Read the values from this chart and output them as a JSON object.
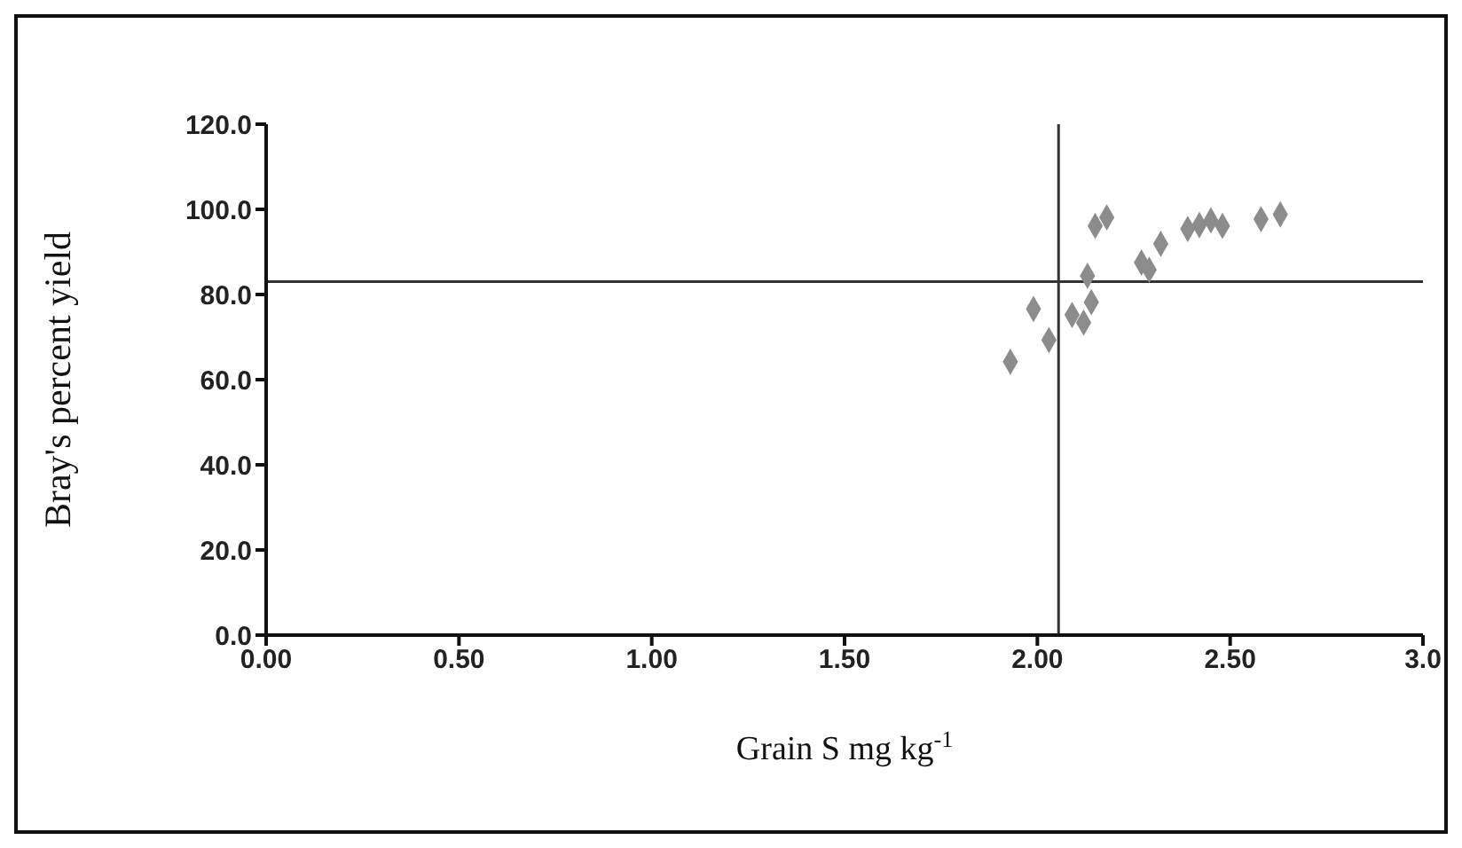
{
  "chart_data": {
    "type": "scatter",
    "xlabel": "Grain S mg kg$^{-1}$",
    "ylabel": "Bray's percent yield",
    "x": [
      1.93,
      1.99,
      2.03,
      2.09,
      2.12,
      2.14,
      2.13,
      2.15,
      2.18,
      2.27,
      2.29,
      2.32,
      2.39,
      2.42,
      2.45,
      2.48,
      2.58,
      2.63
    ],
    "series": [
      {
        "color": "#8c8c8c",
        "values": [
          64.2,
          76.6,
          69.3,
          75.2,
          73.4,
          78.2,
          84.4,
          96.1,
          98.1,
          87.5,
          85.8,
          91.9,
          95.4,
          96.3,
          97.4,
          96.1,
          97.7,
          98.8
        ]
      }
    ],
    "xlim": [
      0,
      3
    ],
    "xticks": [
      {
        "value": 0,
        "label": "0.00"
      },
      {
        "value": 0.5,
        "label": "0.50"
      },
      {
        "value": 1,
        "label": "1.00"
      },
      {
        "value": 1.5,
        "label": "1.50"
      },
      {
        "value": 2,
        "label": "2.00"
      },
      {
        "value": 2.5,
        "label": "2.50"
      },
      {
        "value": 3,
        "label": "3.0"
      }
    ],
    "ylim": [
      0,
      120
    ],
    "yticks": [
      {
        "value": 0,
        "label": "0.0"
      },
      {
        "value": 20,
        "label": "20.0"
      },
      {
        "value": 40,
        "label": "40.0"
      },
      {
        "value": 60,
        "label": "60.0"
      },
      {
        "value": 80,
        "label": "80.0"
      },
      {
        "value": 100,
        "label": "100.0"
      },
      {
        "value": 120,
        "label": "120.0"
      }
    ],
    "ref_lines": [
      {
        "axis": "x",
        "value": 2.055,
        "color": "#333333"
      },
      {
        "axis": "y",
        "value": 83,
        "color": "#333333"
      }
    ],
    "marker": "diamond",
    "grid": false,
    "legend": false
  }
}
